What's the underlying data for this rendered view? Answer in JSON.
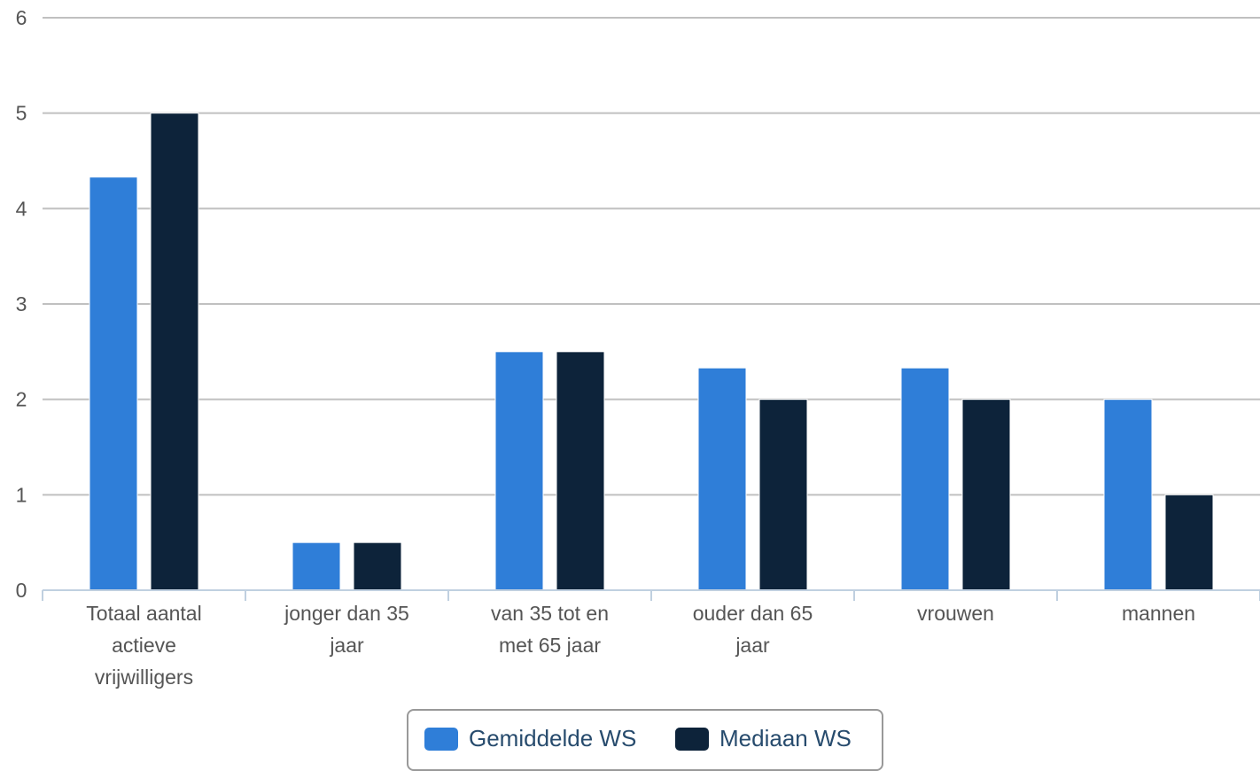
{
  "chart_data": {
    "type": "bar",
    "categories": [
      [
        "Totaal aantal",
        "actieve",
        "vrijwilligers"
      ],
      [
        "jonger dan 35",
        "jaar"
      ],
      [
        "van 35 tot en",
        "met 65 jaar"
      ],
      [
        "ouder dan 65",
        "jaar"
      ],
      [
        "vrouwen"
      ],
      [
        "mannen"
      ]
    ],
    "series": [
      {
        "name": "Gemiddelde WS",
        "color": "#2f7ed8",
        "values": [
          4.33,
          0.5,
          2.5,
          2.33,
          2.33,
          2.0
        ]
      },
      {
        "name": "Mediaan WS",
        "color": "#0d233a",
        "values": [
          5,
          0.5,
          2.5,
          2,
          2,
          1
        ]
      }
    ],
    "yticks": [
      "0",
      "1",
      "2",
      "3",
      "4",
      "5",
      "6"
    ],
    "ylim": [
      0,
      6
    ],
    "grid": true,
    "legend_position": "bottom-center"
  }
}
